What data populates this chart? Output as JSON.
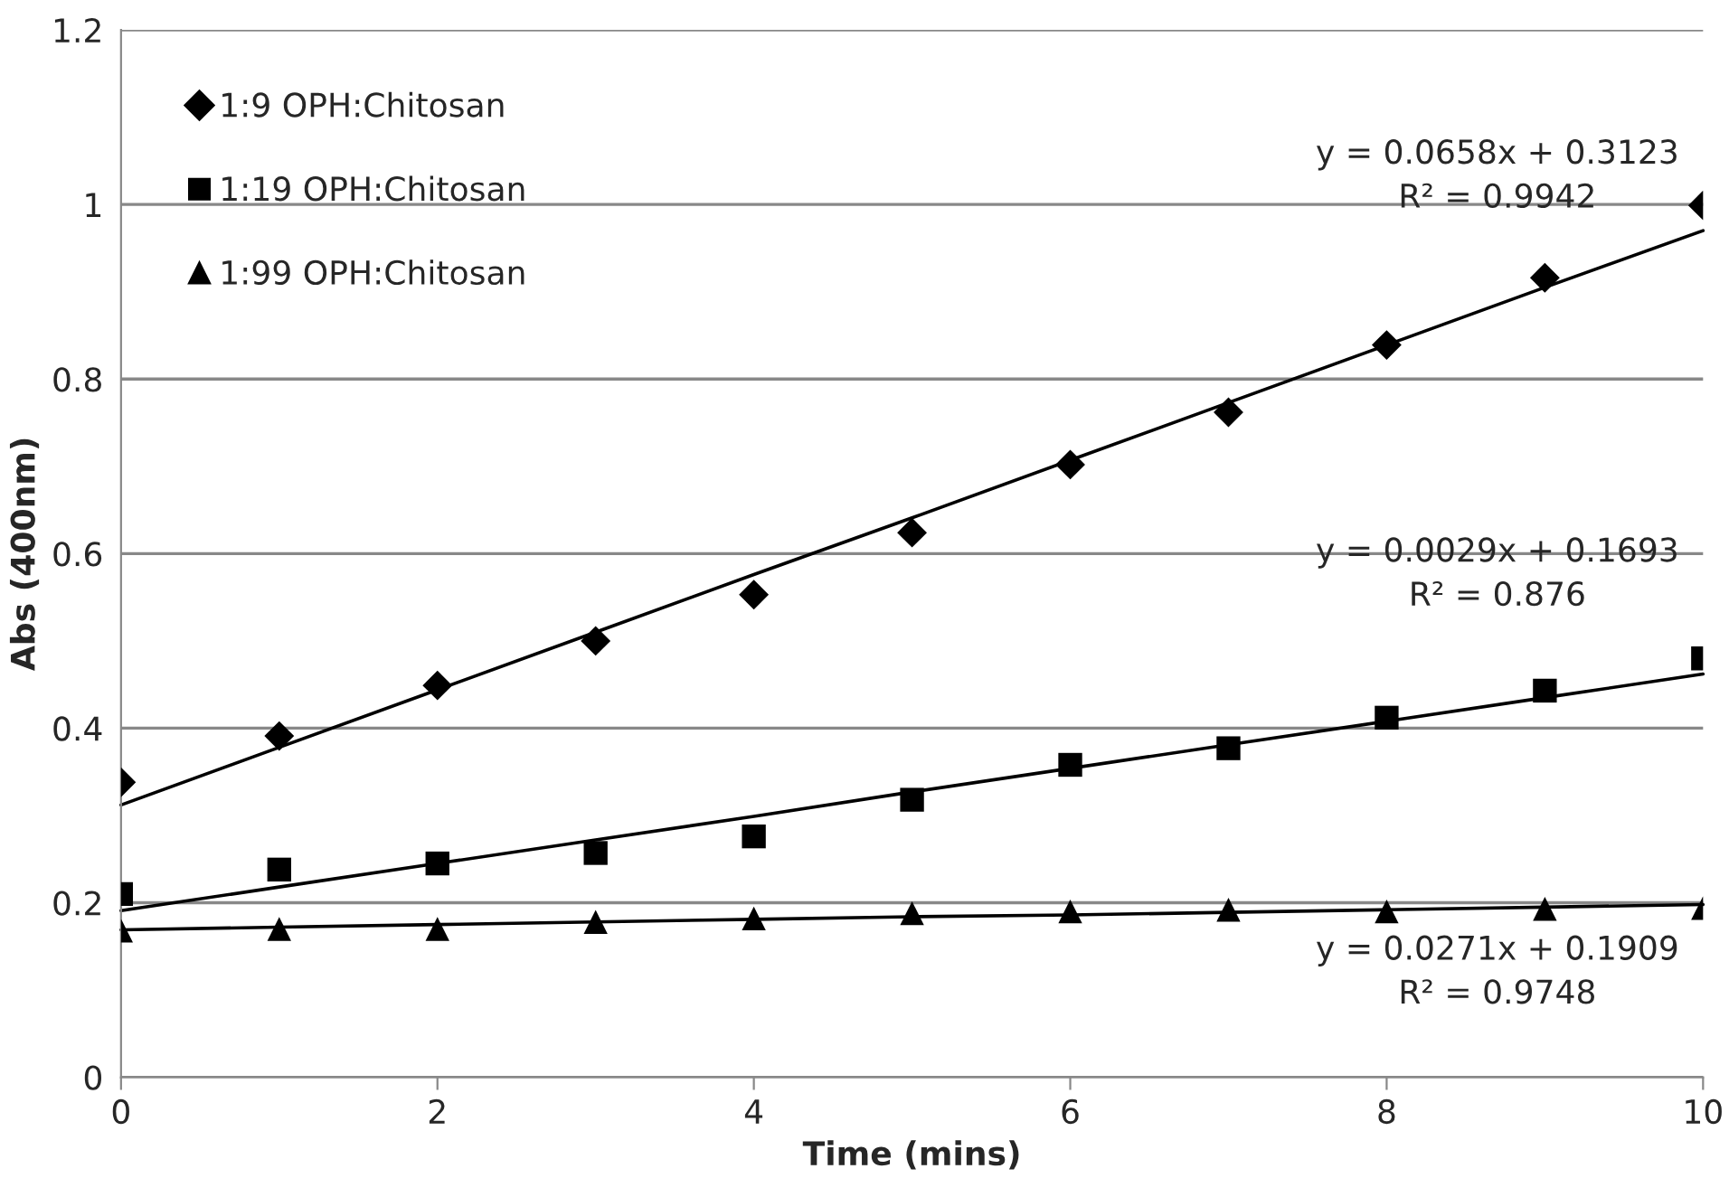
{
  "chart_data": {
    "type": "scatter",
    "xlabel": "Time (mins)",
    "ylabel": "Abs (400nm)",
    "x": [
      0,
      1,
      2,
      3,
      4,
      5,
      6,
      7,
      8,
      9,
      10
    ],
    "series": [
      {
        "name": "1:9 OPH:Chitosan",
        "color": "#000000",
        "marker": "diamond",
        "values": [
          0.338,
          0.391,
          0.449,
          0.5,
          0.553,
          0.624,
          0.702,
          0.762,
          0.839,
          0.916,
          0.999
        ]
      },
      {
        "name": "1:19 OPH:Chitosan",
        "color": "#000000",
        "marker": "square",
        "values": [
          0.21,
          0.238,
          0.245,
          0.257,
          0.276,
          0.318,
          0.358,
          0.377,
          0.412,
          0.443,
          0.48
        ]
      },
      {
        "name": "1:99 OPH:Chitosan",
        "color": "#000000",
        "marker": "triangle",
        "values": [
          0.168,
          0.17,
          0.17,
          0.178,
          0.182,
          0.188,
          0.19,
          0.192,
          0.19,
          0.193,
          0.194
        ]
      },
      {
        "type": "line",
        "color": "#000000",
        "marker": "none",
        "values": [
          0.312,
          0.378,
          0.444,
          0.51,
          0.576,
          0.641,
          0.707,
          0.773,
          0.839,
          0.905,
          0.97
        ]
      },
      {
        "type": "line",
        "color": "#000000",
        "marker": "none",
        "values": [
          0.191,
          0.218,
          0.245,
          0.272,
          0.299,
          0.327,
          0.354,
          0.381,
          0.408,
          0.435,
          0.462
        ]
      },
      {
        "type": "line",
        "color": "#000000",
        "marker": "none",
        "values": [
          0.169,
          0.172,
          0.175,
          0.178,
          0.181,
          0.184,
          0.186,
          0.189,
          0.192,
          0.195,
          0.198
        ]
      }
    ],
    "annotations": [
      "y = 0.0658x + 0.3123\nR² = 0.9942",
      "y = 0.0029x + 0.1693\nR² = 0.876",
      "y = 0.0271x + 0.1909\nR² = 0.9748"
    ],
    "xlim": [
      0,
      10
    ],
    "xticks": [
      0,
      2,
      4,
      6,
      8,
      10
    ],
    "ylim": [
      0,
      1.2
    ],
    "yticks": [
      0,
      0.2,
      0.4,
      0.6,
      0.8,
      1,
      1.2
    ],
    "grid": "y",
    "legend": "top left"
  }
}
